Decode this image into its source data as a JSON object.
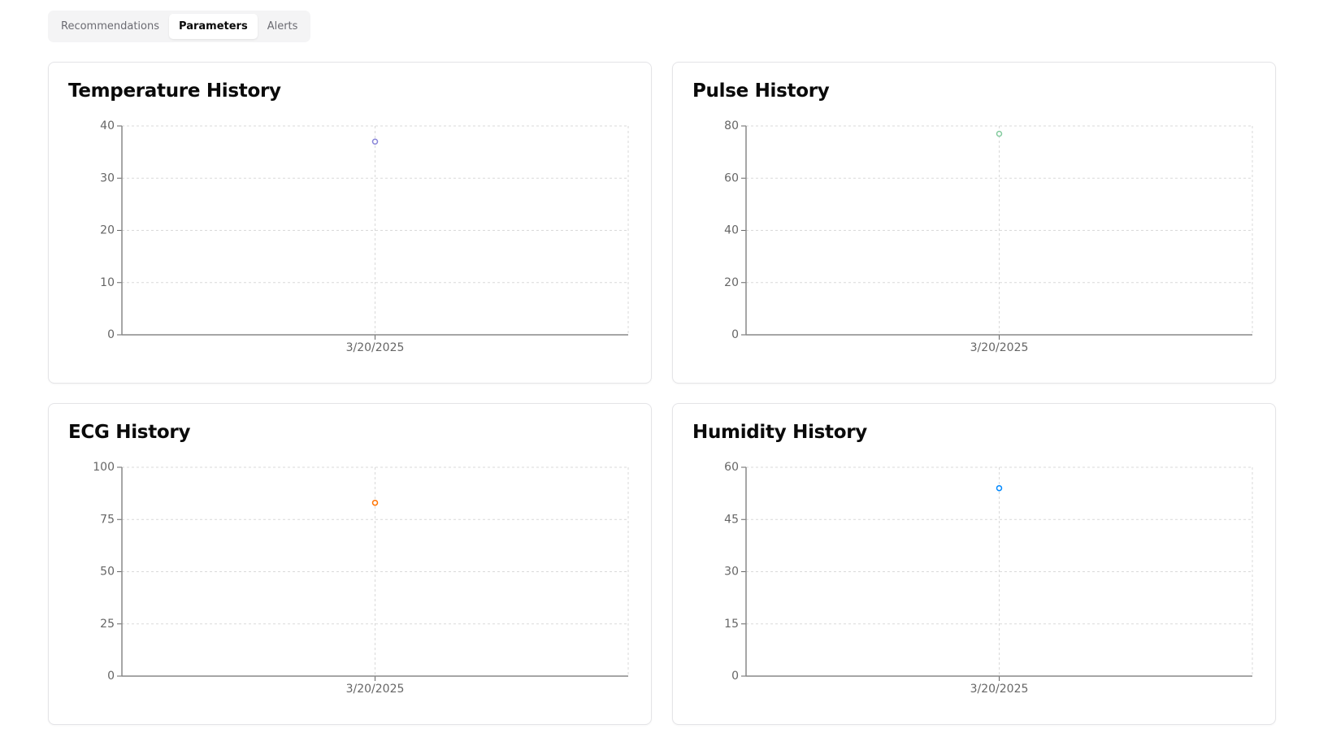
{
  "tabs": [
    {
      "label": "Recommendations",
      "active": false
    },
    {
      "label": "Parameters",
      "active": true
    },
    {
      "label": "Alerts",
      "active": false
    }
  ],
  "chart_data": [
    {
      "type": "scatter",
      "title": "Temperature History",
      "x": [
        "3/20/2025"
      ],
      "values": [
        37
      ],
      "ylim": [
        0,
        40
      ],
      "yticks": [
        "0",
        "10",
        "20",
        "30",
        "40"
      ],
      "color": "#8884d8",
      "grid": true
    },
    {
      "type": "scatter",
      "title": "Pulse History",
      "x": [
        "3/20/2025"
      ],
      "values": [
        77
      ],
      "ylim": [
        0,
        80
      ],
      "yticks": [
        "0",
        "20",
        "40",
        "60",
        "80"
      ],
      "color": "#82ca9d",
      "grid": true
    },
    {
      "type": "scatter",
      "title": "ECG History",
      "x": [
        "3/20/2025"
      ],
      "values": [
        83
      ],
      "ylim": [
        0,
        100
      ],
      "yticks": [
        "0",
        "25",
        "50",
        "75",
        "100"
      ],
      "color": "#ff7300",
      "grid": true
    },
    {
      "type": "scatter",
      "title": "Humidity History",
      "x": [
        "3/20/2025"
      ],
      "values": [
        54
      ],
      "ylim": [
        0,
        60
      ],
      "yticks": [
        "0",
        "15",
        "30",
        "45",
        "60"
      ],
      "color": "#0088fe",
      "grid": true
    }
  ]
}
